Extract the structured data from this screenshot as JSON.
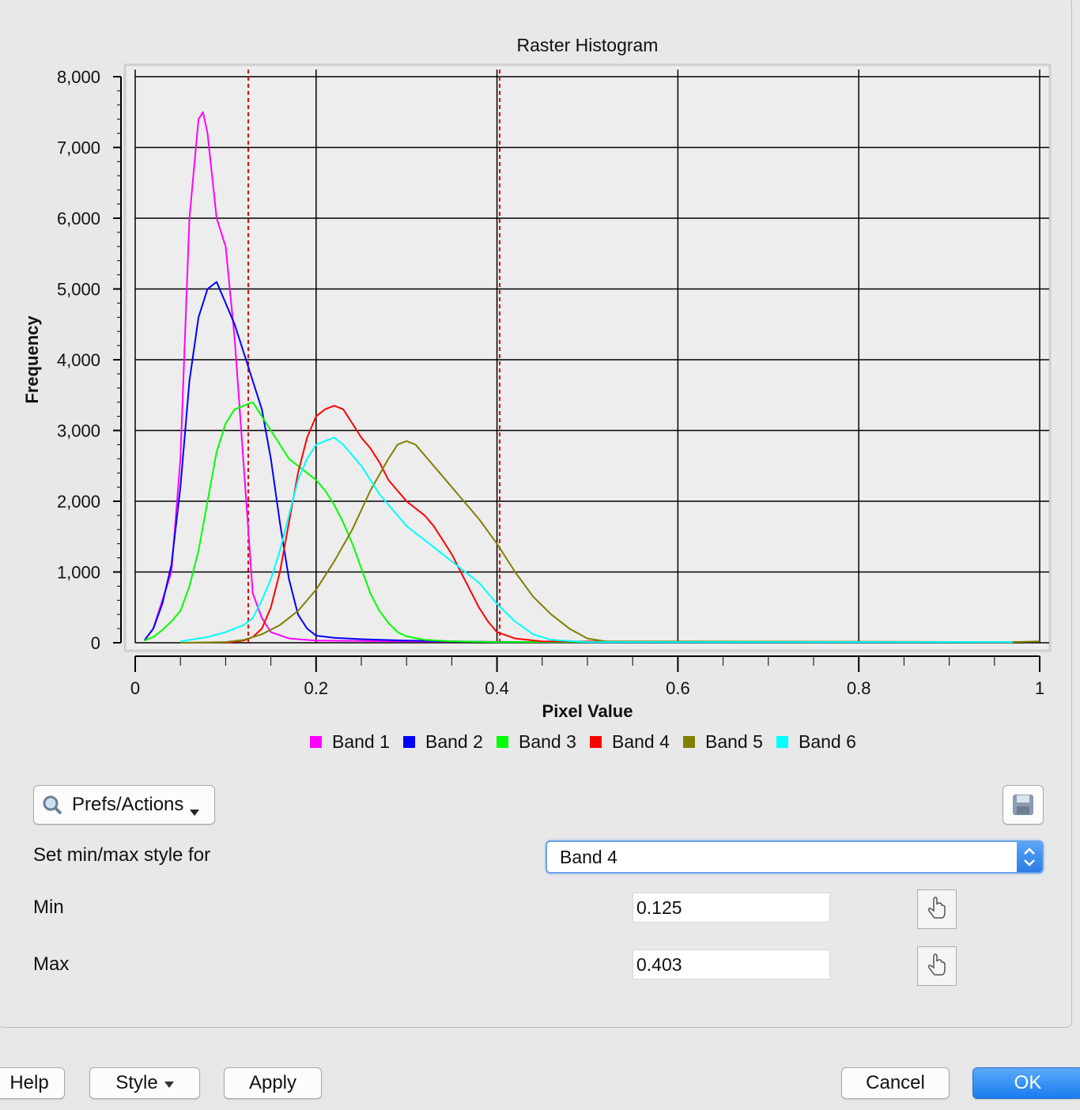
{
  "chart_data": {
    "type": "line",
    "title": "Raster Histogram",
    "xlabel": "Pixel Value",
    "ylabel": "Frequency",
    "xlim": [
      0,
      1
    ],
    "ylim": [
      0,
      8000
    ],
    "x_ticks": [
      0,
      0.2,
      0.4,
      0.6,
      0.8,
      1
    ],
    "x_tick_labels": [
      "0",
      "0.2",
      "0.4",
      "0.6",
      "0.8",
      "1"
    ],
    "y_ticks": [
      0,
      1000,
      2000,
      3000,
      4000,
      5000,
      6000,
      7000,
      8000
    ],
    "y_tick_labels": [
      "0",
      "1,000",
      "2,000",
      "3,000",
      "4,000",
      "5,000",
      "6,000",
      "7,000",
      "8,000"
    ],
    "grid": true,
    "legend": "bottom",
    "min_marker": 0.125,
    "max_marker": 0.403,
    "series": [
      {
        "name": "Band 1",
        "color": "#ff00ff",
        "x": [
          0.01,
          0.02,
          0.03,
          0.04,
          0.05,
          0.06,
          0.07,
          0.075,
          0.08,
          0.09,
          0.1,
          0.11,
          0.12,
          0.13,
          0.14,
          0.15,
          0.17,
          0.2,
          0.3,
          0.45,
          0.97
        ],
        "y": [
          30,
          200,
          600,
          1000,
          2600,
          6000,
          7400,
          7500,
          7200,
          6000,
          5600,
          4300,
          2500,
          700,
          350,
          150,
          60,
          30,
          20,
          10,
          10
        ]
      },
      {
        "name": "Band 2",
        "color": "#0000ff",
        "x": [
          0.01,
          0.02,
          0.03,
          0.04,
          0.05,
          0.06,
          0.07,
          0.08,
          0.09,
          0.1,
          0.11,
          0.12,
          0.13,
          0.14,
          0.15,
          0.16,
          0.17,
          0.18,
          0.19,
          0.2,
          0.22,
          0.25,
          0.3,
          0.4,
          0.97
        ],
        "y": [
          30,
          200,
          550,
          1100,
          2200,
          3700,
          4600,
          5000,
          5100,
          4800,
          4500,
          4100,
          3700,
          3300,
          2600,
          1700,
          900,
          400,
          200,
          100,
          70,
          50,
          30,
          10,
          10
        ]
      },
      {
        "name": "Band 3",
        "color": "#00ff00",
        "x": [
          0.01,
          0.02,
          0.03,
          0.04,
          0.05,
          0.06,
          0.07,
          0.08,
          0.09,
          0.1,
          0.11,
          0.12,
          0.13,
          0.14,
          0.15,
          0.16,
          0.17,
          0.18,
          0.19,
          0.2,
          0.21,
          0.22,
          0.23,
          0.24,
          0.25,
          0.26,
          0.27,
          0.28,
          0.29,
          0.3,
          0.32,
          0.35,
          0.4,
          0.97
        ],
        "y": [
          30,
          80,
          180,
          300,
          450,
          800,
          1300,
          2000,
          2700,
          3100,
          3300,
          3350,
          3400,
          3200,
          3000,
          2800,
          2600,
          2500,
          2400,
          2300,
          2150,
          1950,
          1700,
          1400,
          1050,
          700,
          450,
          280,
          150,
          90,
          40,
          20,
          10,
          10
        ]
      },
      {
        "name": "Band 4",
        "color": "#ff0000",
        "x": [
          0.1,
          0.12,
          0.13,
          0.14,
          0.15,
          0.16,
          0.17,
          0.18,
          0.19,
          0.2,
          0.21,
          0.22,
          0.23,
          0.24,
          0.25,
          0.26,
          0.27,
          0.28,
          0.29,
          0.3,
          0.31,
          0.32,
          0.33,
          0.34,
          0.35,
          0.36,
          0.37,
          0.38,
          0.39,
          0.4,
          0.42,
          0.45,
          0.97
        ],
        "y": [
          0,
          30,
          80,
          200,
          500,
          1000,
          1700,
          2400,
          2900,
          3200,
          3300,
          3350,
          3300,
          3100,
          2900,
          2750,
          2550,
          2300,
          2150,
          2000,
          1900,
          1800,
          1650,
          1450,
          1250,
          1000,
          750,
          500,
          300,
          150,
          60,
          20,
          10
        ]
      },
      {
        "name": "Band 5",
        "color": "#808000",
        "x": [
          0.05,
          0.1,
          0.12,
          0.14,
          0.16,
          0.18,
          0.2,
          0.22,
          0.24,
          0.26,
          0.28,
          0.29,
          0.3,
          0.31,
          0.32,
          0.34,
          0.36,
          0.38,
          0.4,
          0.42,
          0.44,
          0.46,
          0.48,
          0.5,
          0.52,
          0.97,
          1.0
        ],
        "y": [
          0,
          10,
          40,
          120,
          250,
          450,
          750,
          1150,
          1600,
          2150,
          2600,
          2800,
          2850,
          2800,
          2650,
          2350,
          2050,
          1750,
          1400,
          1000,
          650,
          400,
          200,
          60,
          20,
          10,
          20
        ]
      },
      {
        "name": "Band 6",
        "color": "#00ffff",
        "x": [
          0.05,
          0.08,
          0.1,
          0.12,
          0.13,
          0.14,
          0.15,
          0.16,
          0.17,
          0.18,
          0.19,
          0.2,
          0.21,
          0.22,
          0.23,
          0.24,
          0.25,
          0.26,
          0.27,
          0.28,
          0.29,
          0.3,
          0.32,
          0.34,
          0.36,
          0.38,
          0.4,
          0.42,
          0.44,
          0.46,
          0.5,
          0.97
        ],
        "y": [
          20,
          80,
          150,
          250,
          350,
          600,
          900,
          1300,
          1800,
          2300,
          2600,
          2800,
          2850,
          2900,
          2800,
          2650,
          2500,
          2300,
          2100,
          1950,
          1800,
          1650,
          1450,
          1250,
          1050,
          850,
          550,
          300,
          120,
          40,
          10,
          10
        ]
      }
    ]
  },
  "prefs_button_label": "Prefs/Actions",
  "prefs_icon": "magnifier-icon",
  "save_icon": "floppy-disk-icon",
  "set_style_label": "Set min/max style for",
  "band_select_value": "Band 4",
  "min_label": "Min",
  "min_value": "0.125",
  "max_label": "Max",
  "max_value": "0.403",
  "pick_icon": "pointer-hand-icon",
  "buttons": {
    "help": "Help",
    "style": "Style",
    "apply": "Apply",
    "cancel": "Cancel",
    "ok": "OK"
  }
}
